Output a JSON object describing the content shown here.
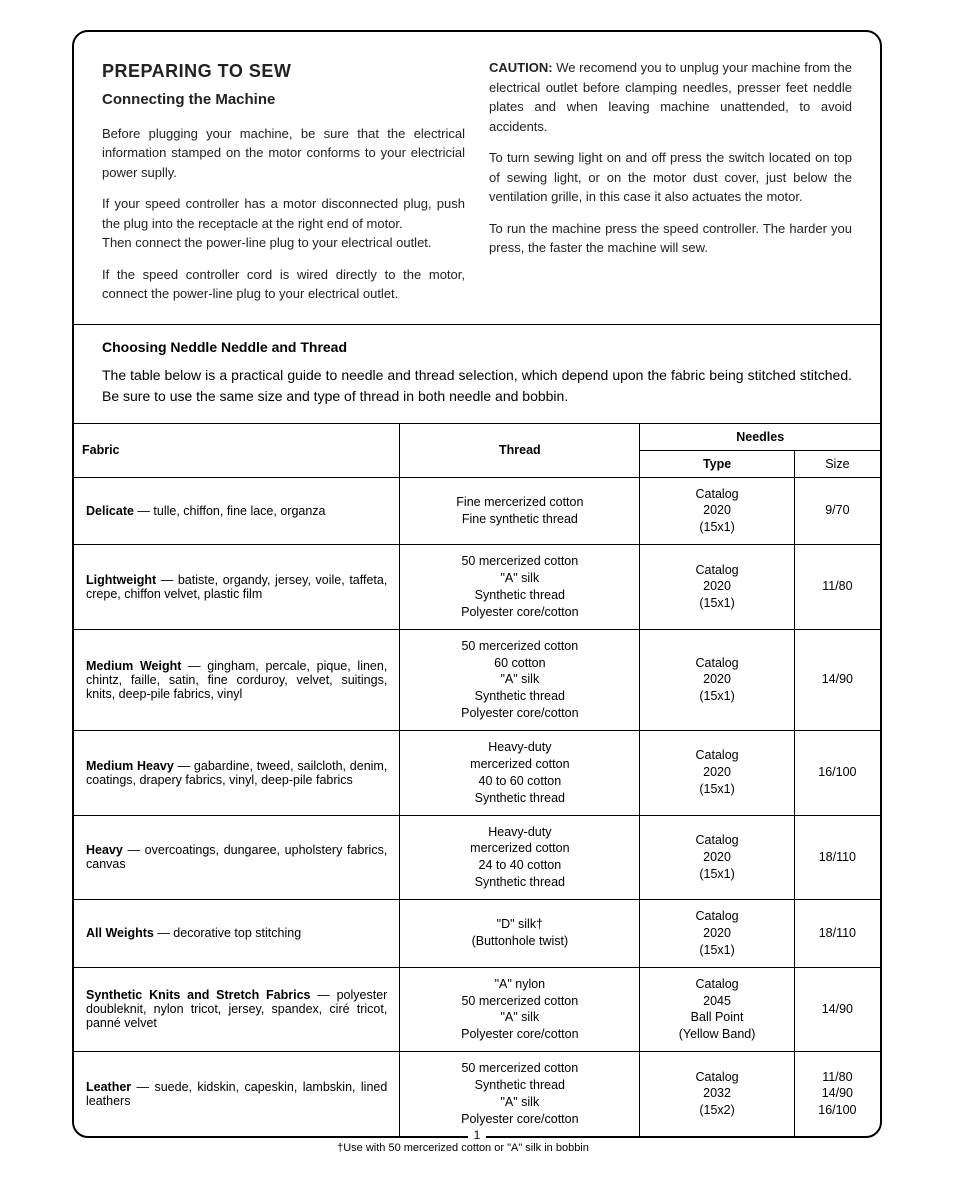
{
  "heading_main": "PREPARING TO SEW",
  "heading_sub": "Connecting the Machine",
  "left_paras": [
    "Before plugging your machine, be sure that the electrical information stamped on the motor conforms to your electricial power suplly.",
    "If your speed controller has a motor disconnected plug, push the plug into the receptacle at the right end of motor.",
    "Then connect the power-line plug to your electrical outlet.",
    "If the speed controller cord is wired directly to the motor, connect the power-line plug to your electrical outlet."
  ],
  "caution_label": "CAUTION:",
  "caution_text": " We recomend you to unplug your machine from the electrical outlet before clamping needles, presser feet neddle plates and when leaving machine unattended, to avoid accidents.",
  "right_paras": [
    "To turn sewing light on and off press the switch located on top of sewing light, or on the motor dust cover, just below the ventilation grille, in this case it also actuates the motor.",
    "To run the machine press the speed controller. The harder you press, the faster the machine will sew."
  ],
  "choosing_heading": "Choosing Neddle Neddle and Thread",
  "choosing_para": "The table below is a practical guide to needle and thread selection, which depend upon the fabric being stitched stitched. Be sure to use the same size and type of thread in both needle and bobbin.",
  "table": {
    "headers": {
      "fabric": "Fabric",
      "thread": "Thread",
      "needles": "Needles",
      "type": "Type",
      "size": "Size"
    },
    "rows": [
      {
        "fabric_bold": "Delicate",
        "fabric_rest": " — tulle, chiffon, fine lace, organza",
        "thread": [
          "Fine mercerized cotton",
          "Fine synthetic thread"
        ],
        "type": [
          "Catalog",
          "2020",
          "(15x1)"
        ],
        "size": [
          "9/70"
        ]
      },
      {
        "fabric_bold": "Lightweight",
        "fabric_rest": " — batiste, organdy, jersey, voile, taffeta, crepe, chiffon velvet, plastic film",
        "thread": [
          "50 mercerized cotton",
          "\"A\" silk",
          "Synthetic thread",
          "Polyester core/cotton"
        ],
        "type": [
          "Catalog",
          "2020",
          "(15x1)"
        ],
        "size": [
          "11/80"
        ]
      },
      {
        "fabric_bold": "Medium Weight",
        "fabric_rest": " — gingham, percale, pique, linen, chintz, faille, satin, fine corduroy, velvet, suitings, knits, deep-pile fabrics, vinyl",
        "thread": [
          "50 mercerized cotton",
          "60 cotton",
          "\"A\" silk",
          "Synthetic thread",
          "Polyester core/cotton"
        ],
        "type": [
          "Catalog",
          "2020",
          "(15x1)"
        ],
        "size": [
          "14/90"
        ]
      },
      {
        "fabric_bold": "Medium Heavy",
        "fabric_rest": " — gabardine, tweed, sailcloth, denim, coatings, drapery fabrics, vinyl, deep-pile fabrics",
        "thread": [
          "Heavy-duty",
          "mercerized cotton",
          "40 to 60 cotton",
          "Synthetic thread"
        ],
        "type": [
          "Catalog",
          "2020",
          "(15x1)"
        ],
        "size": [
          "16/100"
        ]
      },
      {
        "fabric_bold": "Heavy",
        "fabric_rest": " — overcoatings, dungaree, upholstery fabrics, canvas",
        "thread": [
          "Heavy-duty",
          "mercerized cotton",
          "24 to 40 cotton",
          "Synthetic thread"
        ],
        "type": [
          "Catalog",
          "2020",
          "(15x1)"
        ],
        "size": [
          "18/110"
        ]
      },
      {
        "fabric_bold": "All Weights",
        "fabric_rest": " — decorative top stitching",
        "thread": [
          "\"D\" silk†",
          "(Buttonhole twist)"
        ],
        "type": [
          "Catalog",
          "2020",
          "(15x1)"
        ],
        "size": [
          "18/110"
        ]
      },
      {
        "fabric_bold": "Synthetic Knits and Stretch Fabrics",
        "fabric_rest": " — polyester doubleknit, nylon tricot, jersey, spandex, ciré tricot, panné velvet",
        "thread": [
          "\"A\" nylon",
          "50 mercerized cotton",
          "\"A\" silk",
          "Polyester core/cotton"
        ],
        "type": [
          "Catalog",
          "2045",
          "Ball Point",
          "(Yellow Band)"
        ],
        "size": [
          "14/90"
        ]
      },
      {
        "fabric_bold": "Leather",
        "fabric_rest": " — suede, kidskin, capeskin, lambskin, lined leathers",
        "thread": [
          "50 mercerized cotton",
          "Synthetic thread",
          "\"A\" silk",
          "Polyester core/cotton"
        ],
        "type": [
          "Catalog",
          "2032",
          "(15x2)"
        ],
        "size": [
          "11/80",
          "14/90",
          "16/100"
        ]
      }
    ]
  },
  "page_number": "1",
  "footnote": "†Use with 50 mercerized cotton or \"A\" silk in bobbin"
}
